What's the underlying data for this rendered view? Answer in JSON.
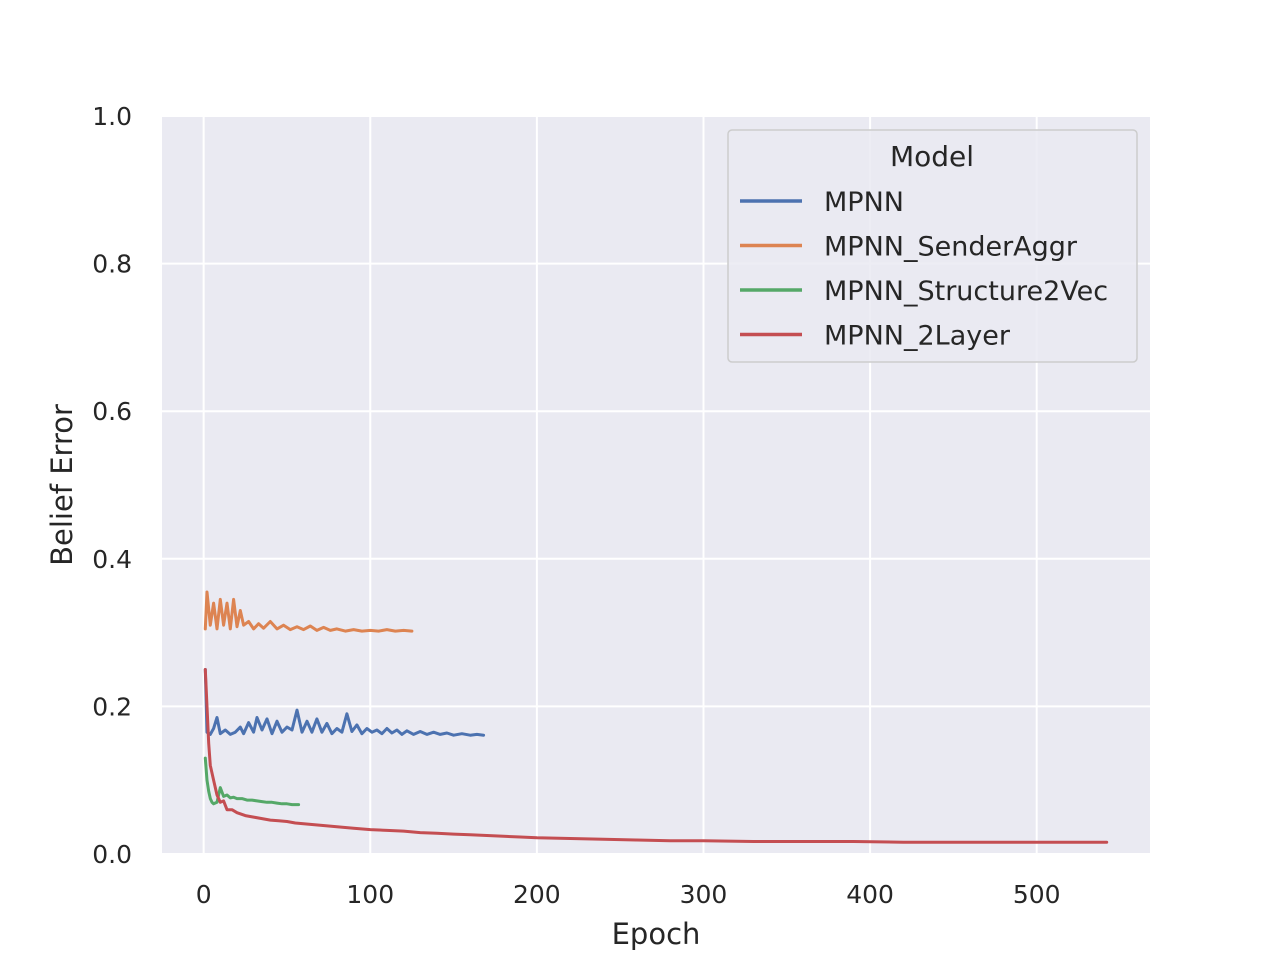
{
  "chart_data": {
    "type": "line",
    "xlabel": "Epoch",
    "ylabel": "Belief Error",
    "xlim": [
      -25,
      568
    ],
    "ylim": [
      0,
      1
    ],
    "xticks": [
      0,
      100,
      200,
      300,
      400,
      500
    ],
    "yticks": [
      "0.0",
      "0.2",
      "0.4",
      "0.6",
      "0.8",
      "1.0"
    ],
    "grid": true,
    "legend": {
      "title": "Model",
      "position": "top-right"
    },
    "colors": {
      "background": "#EAEAF2",
      "grid": "#FFFFFF",
      "text": "#262626"
    },
    "series": [
      {
        "name": "MPNN",
        "color": "#4C72B0",
        "points": [
          [
            1,
            0.25
          ],
          [
            2,
            0.165
          ],
          [
            4,
            0.162
          ],
          [
            6,
            0.17
          ],
          [
            8,
            0.185
          ],
          [
            10,
            0.163
          ],
          [
            13,
            0.168
          ],
          [
            16,
            0.162
          ],
          [
            19,
            0.165
          ],
          [
            22,
            0.172
          ],
          [
            24,
            0.163
          ],
          [
            27,
            0.178
          ],
          [
            30,
            0.165
          ],
          [
            32,
            0.185
          ],
          [
            35,
            0.168
          ],
          [
            38,
            0.183
          ],
          [
            41,
            0.163
          ],
          [
            44,
            0.18
          ],
          [
            47,
            0.165
          ],
          [
            50,
            0.172
          ],
          [
            53,
            0.168
          ],
          [
            56,
            0.195
          ],
          [
            59,
            0.165
          ],
          [
            62,
            0.18
          ],
          [
            65,
            0.165
          ],
          [
            68,
            0.183
          ],
          [
            71,
            0.165
          ],
          [
            74,
            0.177
          ],
          [
            77,
            0.163
          ],
          [
            80,
            0.17
          ],
          [
            83,
            0.165
          ],
          [
            86,
            0.19
          ],
          [
            89,
            0.166
          ],
          [
            92,
            0.175
          ],
          [
            95,
            0.163
          ],
          [
            98,
            0.17
          ],
          [
            101,
            0.165
          ],
          [
            104,
            0.168
          ],
          [
            107,
            0.163
          ],
          [
            110,
            0.17
          ],
          [
            113,
            0.164
          ],
          [
            116,
            0.168
          ],
          [
            119,
            0.162
          ],
          [
            122,
            0.167
          ],
          [
            126,
            0.162
          ],
          [
            130,
            0.166
          ],
          [
            134,
            0.162
          ],
          [
            138,
            0.165
          ],
          [
            142,
            0.162
          ],
          [
            146,
            0.164
          ],
          [
            150,
            0.161
          ],
          [
            155,
            0.163
          ],
          [
            160,
            0.161
          ],
          [
            164,
            0.162
          ],
          [
            168,
            0.161
          ]
        ]
      },
      {
        "name": "MPNN_SenderAggr",
        "color": "#DD8452",
        "points": [
          [
            1,
            0.305
          ],
          [
            2,
            0.355
          ],
          [
            4,
            0.31
          ],
          [
            6,
            0.34
          ],
          [
            8,
            0.305
          ],
          [
            10,
            0.345
          ],
          [
            12,
            0.31
          ],
          [
            14,
            0.34
          ],
          [
            16,
            0.305
          ],
          [
            18,
            0.345
          ],
          [
            20,
            0.308
          ],
          [
            22,
            0.33
          ],
          [
            24,
            0.31
          ],
          [
            27,
            0.315
          ],
          [
            30,
            0.305
          ],
          [
            33,
            0.312
          ],
          [
            36,
            0.306
          ],
          [
            40,
            0.315
          ],
          [
            44,
            0.305
          ],
          [
            48,
            0.31
          ],
          [
            52,
            0.304
          ],
          [
            56,
            0.308
          ],
          [
            60,
            0.304
          ],
          [
            64,
            0.309
          ],
          [
            68,
            0.303
          ],
          [
            72,
            0.307
          ],
          [
            76,
            0.303
          ],
          [
            80,
            0.305
          ],
          [
            85,
            0.302
          ],
          [
            90,
            0.304
          ],
          [
            95,
            0.302
          ],
          [
            100,
            0.303
          ],
          [
            105,
            0.302
          ],
          [
            110,
            0.304
          ],
          [
            115,
            0.302
          ],
          [
            120,
            0.303
          ],
          [
            125,
            0.302
          ]
        ]
      },
      {
        "name": "MPNN_Structure2Vec",
        "color": "#55A868",
        "points": [
          [
            1,
            0.13
          ],
          [
            2,
            0.1
          ],
          [
            3,
            0.085
          ],
          [
            4,
            0.075
          ],
          [
            5,
            0.07
          ],
          [
            6,
            0.068
          ],
          [
            8,
            0.07
          ],
          [
            10,
            0.09
          ],
          [
            12,
            0.078
          ],
          [
            14,
            0.08
          ],
          [
            16,
            0.076
          ],
          [
            18,
            0.077
          ],
          [
            20,
            0.075
          ],
          [
            23,
            0.075
          ],
          [
            26,
            0.073
          ],
          [
            29,
            0.073
          ],
          [
            32,
            0.072
          ],
          [
            35,
            0.071
          ],
          [
            38,
            0.07
          ],
          [
            41,
            0.07
          ],
          [
            44,
            0.069
          ],
          [
            47,
            0.068
          ],
          [
            50,
            0.068
          ],
          [
            53,
            0.067
          ],
          [
            57,
            0.067
          ]
        ]
      },
      {
        "name": "MPNN_2Layer",
        "color": "#C44E52",
        "points": [
          [
            1,
            0.25
          ],
          [
            2,
            0.2
          ],
          [
            3,
            0.15
          ],
          [
            4,
            0.12
          ],
          [
            6,
            0.1
          ],
          [
            8,
            0.08
          ],
          [
            10,
            0.07
          ],
          [
            12,
            0.072
          ],
          [
            14,
            0.06
          ],
          [
            17,
            0.06
          ],
          [
            20,
            0.056
          ],
          [
            25,
            0.052
          ],
          [
            30,
            0.05
          ],
          [
            35,
            0.048
          ],
          [
            40,
            0.046
          ],
          [
            45,
            0.045
          ],
          [
            50,
            0.044
          ],
          [
            55,
            0.042
          ],
          [
            60,
            0.041
          ],
          [
            70,
            0.039
          ],
          [
            80,
            0.037
          ],
          [
            90,
            0.035
          ],
          [
            100,
            0.033
          ],
          [
            110,
            0.032
          ],
          [
            120,
            0.031
          ],
          [
            130,
            0.029
          ],
          [
            140,
            0.028
          ],
          [
            150,
            0.027
          ],
          [
            160,
            0.026
          ],
          [
            170,
            0.025
          ],
          [
            180,
            0.024
          ],
          [
            190,
            0.023
          ],
          [
            200,
            0.022
          ],
          [
            220,
            0.021
          ],
          [
            240,
            0.02
          ],
          [
            260,
            0.019
          ],
          [
            280,
            0.018
          ],
          [
            300,
            0.018
          ],
          [
            330,
            0.017
          ],
          [
            360,
            0.017
          ],
          [
            390,
            0.017
          ],
          [
            420,
            0.016
          ],
          [
            450,
            0.016
          ],
          [
            480,
            0.016
          ],
          [
            510,
            0.016
          ],
          [
            542,
            0.016
          ]
        ]
      }
    ]
  }
}
